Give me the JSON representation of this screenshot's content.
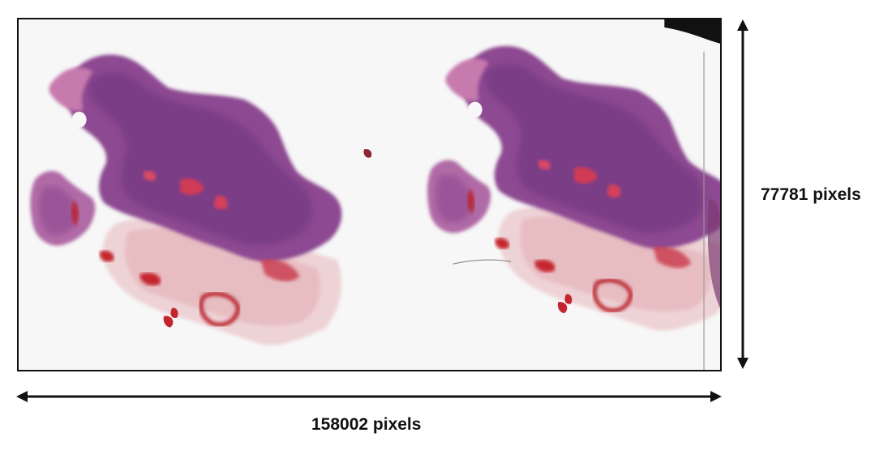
{
  "image": {
    "description_icon": "tissue-slide-icon"
  },
  "dimensions": {
    "width_label": "158002 pixels",
    "height_label": "77781 pixels"
  },
  "colors": {
    "stain_dark": "#7b3f86",
    "stain_mid": "#a5509a",
    "stain_pink": "#d6799e",
    "blood_red": "#c4252e",
    "background": "#f7f7f7",
    "border": "#111111"
  }
}
